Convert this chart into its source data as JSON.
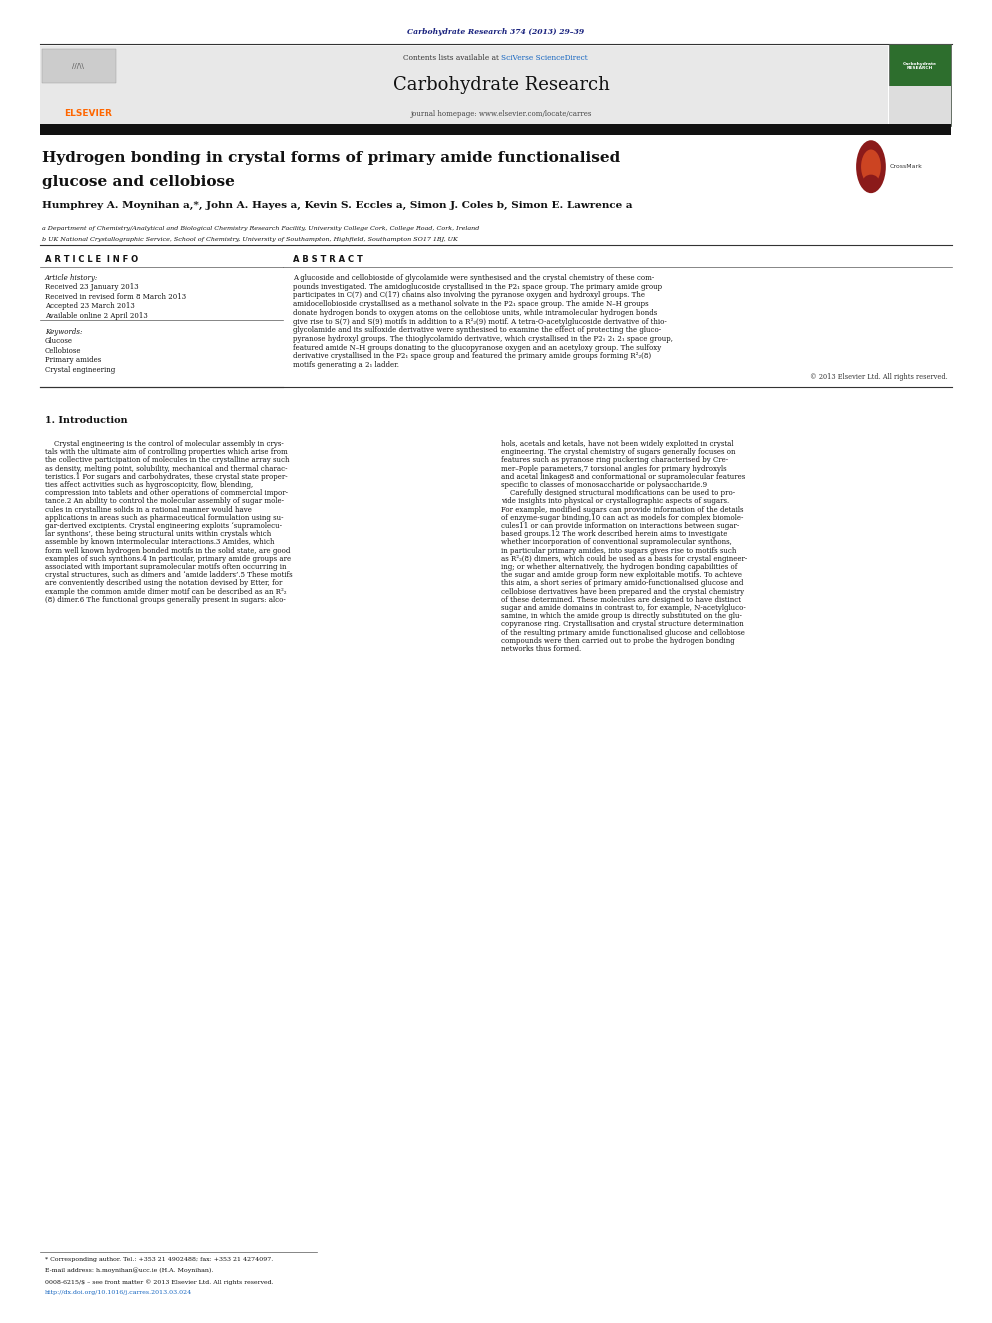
{
  "page_width": 9.92,
  "page_height": 13.23,
  "background_color": "#ffffff",
  "journal_ref": "Carbohydrate Research 374 (2013) 29–39",
  "journal_ref_color": "#1a237e",
  "journal_name": "Carbohydrate Research",
  "journal_homepage": "journal homepage: www.elsevier.com/locate/carres",
  "contents_text": "Contents lists available at ",
  "sciverse_text": "SciVerse ScienceDirect",
  "sciverse_color": "#1565C0",
  "elsevier_color": "#FF6600",
  "header_bg": "#e8e8e8",
  "article_title_line1": "Hydrogen bonding in crystal forms of primary amide functionalised",
  "article_title_line2": "glucose and cellobiose",
  "authors_line": "Humphrey A. Moynihan a,*, John A. Hayes a, Kevin S. Eccles a, Simon J. Coles b, Simon E. Lawrence a",
  "affil_a": "a Department of Chemistry/Analytical and Biological Chemistry Research Facility, University College Cork, College Road, Cork, Ireland",
  "affil_b": "b UK National Crystallographic Service, School of Chemistry, University of Southampton, Highfield, Southampton SO17 1BJ, UK",
  "section_article_info": "A R T I C L E  I N F O",
  "section_abstract": "A B S T R A C T",
  "article_history_label": "Article history:",
  "received1": "Received 23 January 2013",
  "received2": "Received in revised form 8 March 2013",
  "accepted": "Accepted 23 March 2013",
  "available": "Available online 2 April 2013",
  "keywords_label": "Keywords:",
  "keywords": [
    "Glucose",
    "Cellobiose",
    "Primary amides",
    "Crystal engineering"
  ],
  "copyright": "© 2013 Elsevier Ltd. All rights reserved.",
  "intro_heading": "1. Introduction",
  "abstract_lines": [
    "A glucoside and cellobioside of glycolamide were synthesised and the crystal chemistry of these com-",
    "pounds investigated. The amidoglucoside crystallised in the P2₁ space group. The primary amide group",
    "participates in C(7) and C(17) chains also involving the pyranose oxygen and hydroxyl groups. The",
    "amidocellobioside crystallised as a methanol solvate in the P2₁ space group. The amide N–H groups",
    "donate hydrogen bonds to oxygen atoms on the cellobiose units, while intramolecular hydrogen bonds",
    "give rise to S(7) and S(9) motifs in addition to a R²₂(9) motif. A tetra-O-acetylglucoside derivative of thio-",
    "glycolamide and its sulfoxide derivative were synthesised to examine the effect of protecting the gluco-",
    "pyranose hydroxyl groups. The thioglycolamido derivative, which crystallised in the P2₁ 2₁ 2₁ space group,",
    "featured amide N–H groups donating to the glucopyranose oxygen and an acetyloxy group. The sulfoxy",
    "derivative crystallised in the P2₁ space group and featured the primary amide groups forming R²₂(8)",
    "motifs generating a 2₁ ladder."
  ],
  "intro_col1_lines": [
    "    Crystal engineering is the control of molecular assembly in crys-",
    "tals with the ultimate aim of controlling properties which arise from",
    "the collective participation of molecules in the crystalline array such",
    "as density, melting point, solubility, mechanical and thermal charac-",
    "teristics.1 For sugars and carbohydrates, these crystal state proper-",
    "ties affect activities such as hygroscopicity, flow, blending,",
    "compression into tablets and other operations of commercial impor-",
    "tance.2 An ability to control the molecular assembly of sugar mole-",
    "cules in crystalline solids in a rational manner would have",
    "applications in areas such as pharmaceutical formulation using su-",
    "gar-derived excipients. Crystal engineering exploits ‘supramolecu-",
    "lar synthons’, these being structural units within crystals which",
    "assemble by known intermolecular interactions.3 Amides, which",
    "form well known hydrogen bonded motifs in the solid state, are good",
    "examples of such synthons.4 In particular, primary amide groups are",
    "associated with important supramolecular motifs often occurring in",
    "crystal structures, such as dimers and ‘amide ladders’.5 These motifs",
    "are conveniently described using the notation devised by Etter, for",
    "example the common amide dimer motif can be described as an R²₂",
    "(8) dimer.6 The functional groups generally present in sugars: alco-"
  ],
  "intro_col2_lines": [
    "hols, acetals and ketals, have not been widely exploited in crystal",
    "engineering. The crystal chemistry of sugars generally focuses on",
    "features such as pyranose ring puckering characterised by Cre-",
    "mer–Pople parameters,7 torsional angles for primary hydroxyls",
    "and acetal linkages8 and conformational or supramolecular features",
    "specific to classes of monosaccharide or polysaccharide.9",
    "    Carefully designed structural modifications can be used to pro-",
    "vide insights into physical or crystallographic aspects of sugars.",
    "For example, modified sugars can provide information of the details",
    "of enzyme-sugar binding,10 can act as models for complex biomole-",
    "cules11 or can provide information on interactions between sugar-",
    "based groups.12 The work described herein aims to investigate",
    "whether incorporation of conventional supramolecular synthons,",
    "in particular primary amides, into sugars gives rise to motifs such",
    "as R²₂(8) dimers, which could be used as a basis for crystal engineer-",
    "ing; or whether alternatively, the hydrogen bonding capabilities of",
    "the sugar and amide group form new exploitable motifs. To achieve",
    "this aim, a short series of primary amido-functionalised glucose and",
    "cellobiose derivatives have been prepared and the crystal chemistry",
    "of these determined. These molecules are designed to have distinct",
    "sugar and amide domains in contrast to, for example, N-acetylgluco-",
    "samine, in which the amide group is directly substituted on the glu-",
    "copyranose ring. Crystallisation and crystal structure determination",
    "of the resulting primary amide functionalised glucose and cellobiose",
    "compounds were then carried out to probe the hydrogen bonding",
    "networks thus formed."
  ],
  "footnote_star": "* Corresponding author. Tel.: +353 21 4902488; fax: +353 21 4274097.",
  "footnote_email": "E-mail address: h.moynihan@ucc.ie (H.A. Moynihan).",
  "footnote_issn": "0008-6215/$ – see front matter © 2013 Elsevier Ltd. All rights reserved.",
  "footnote_doi": "http://dx.doi.org/10.1016/j.carres.2013.03.024",
  "doi_color": "#1565C0"
}
